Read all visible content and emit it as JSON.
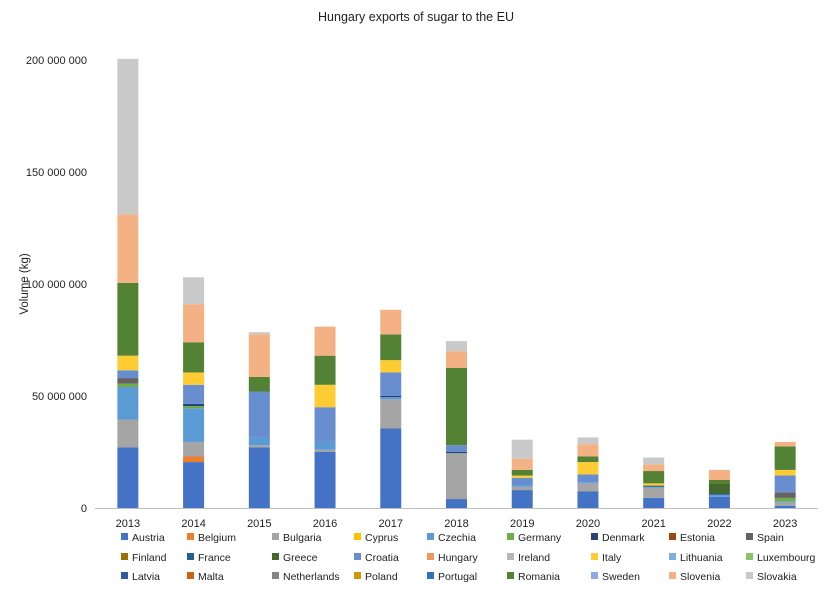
{
  "chart_data": {
    "type": "bar",
    "stacked": true,
    "title": "Hungary exports of sugar to the EU",
    "xlabel": "",
    "ylabel": "Volume (kg)",
    "ylim": [
      0,
      200000000
    ],
    "yticks": [
      0,
      50000000,
      100000000,
      150000000,
      200000000
    ],
    "ytick_labels": [
      "0",
      "50 000 000",
      "100 000 000",
      "150 000 000",
      "200 000 000"
    ],
    "categories": [
      "2013",
      "2014",
      "2015",
      "2016",
      "2017",
      "2018",
      "2019",
      "2020",
      "2021",
      "2022",
      "2023"
    ],
    "legend_position": "bottom",
    "series": [
      {
        "name": "Austria",
        "color": "#4472C4",
        "values": [
          27000000,
          20500000,
          27000000,
          25000000,
          35500000,
          4000000,
          8000000,
          7500000,
          4500000,
          5000000,
          1000000
        ]
      },
      {
        "name": "Belgium",
        "color": "#ED7D31",
        "values": [
          0,
          2500000,
          0,
          0,
          0,
          0,
          0,
          0,
          0,
          0,
          0
        ]
      },
      {
        "name": "Bulgaria",
        "color": "#A5A5A5",
        "values": [
          12500000,
          6500000,
          1000000,
          1000000,
          13000000,
          20500000,
          1500000,
          3500000,
          4500000,
          0,
          1500000
        ]
      },
      {
        "name": "Cyprus",
        "color": "#FFC000",
        "values": [
          0,
          0,
          0,
          0,
          0,
          0,
          0,
          0,
          0,
          0,
          0
        ]
      },
      {
        "name": "Czechia",
        "color": "#5B9BD5",
        "values": [
          14500000,
          15000000,
          3500000,
          3500000,
          1000000,
          0,
          1000000,
          500000,
          500000,
          1000000,
          500000
        ]
      },
      {
        "name": "Germany",
        "color": "#70AD47",
        "values": [
          1500000,
          1000000,
          0,
          0,
          0,
          0,
          0,
          0,
          0,
          0,
          1500000
        ]
      },
      {
        "name": "Denmark",
        "color": "#264478",
        "values": [
          0,
          1000000,
          0,
          0,
          500000,
          500000,
          0,
          0,
          500000,
          500000,
          0
        ]
      },
      {
        "name": "Estonia",
        "color": "#9E480E",
        "values": [
          0,
          0,
          0,
          0,
          0,
          0,
          0,
          0,
          0,
          0,
          0
        ]
      },
      {
        "name": "Spain",
        "color": "#636363",
        "values": [
          2500000,
          0,
          0,
          0,
          0,
          0,
          0,
          0,
          0,
          0,
          2500000
        ]
      },
      {
        "name": "Finland",
        "color": "#997300",
        "values": [
          0,
          0,
          0,
          0,
          0,
          0,
          0,
          0,
          0,
          0,
          0
        ]
      },
      {
        "name": "France",
        "color": "#255E91",
        "values": [
          0,
          0,
          0,
          0,
          0,
          0,
          0,
          0,
          0,
          0,
          0
        ]
      },
      {
        "name": "Greece",
        "color": "#43682B",
        "values": [
          0,
          0,
          0,
          0,
          0,
          0,
          0,
          0,
          0,
          4500000,
          0
        ]
      },
      {
        "name": "Croatia",
        "color": "#698ED0",
        "values": [
          3500000,
          8500000,
          20500000,
          15500000,
          10500000,
          3000000,
          3000000,
          3500000,
          0,
          0,
          7500000
        ]
      },
      {
        "name": "Hungary",
        "color": "#F1975A",
        "values": [
          0,
          0,
          0,
          0,
          0,
          0,
          0,
          0,
          0,
          0,
          0
        ]
      },
      {
        "name": "Ireland",
        "color": "#B7B7B7",
        "values": [
          0,
          0,
          0,
          0,
          0,
          0,
          0,
          0,
          0,
          0,
          0
        ]
      },
      {
        "name": "Italy",
        "color": "#FFCD33",
        "values": [
          6500000,
          5500000,
          0,
          10000000,
          5500000,
          0,
          1000000,
          5500000,
          1000000,
          0,
          2500000
        ]
      },
      {
        "name": "Lithuania",
        "color": "#7CAFDD",
        "values": [
          0,
          0,
          0,
          0,
          0,
          0,
          0,
          0,
          0,
          0,
          0
        ]
      },
      {
        "name": "Luxembourg",
        "color": "#8CC168",
        "values": [
          0,
          0,
          0,
          0,
          0,
          0,
          0,
          0,
          0,
          0,
          0
        ]
      },
      {
        "name": "Latvia",
        "color": "#335AA1",
        "values": [
          0,
          0,
          0,
          0,
          0,
          0,
          0,
          0,
          0,
          0,
          0
        ]
      },
      {
        "name": "Malta",
        "color": "#D26012",
        "values": [
          0,
          0,
          0,
          0,
          0,
          0,
          0,
          0,
          0,
          0,
          0
        ]
      },
      {
        "name": "Netherlands",
        "color": "#848484",
        "values": [
          0,
          0,
          0,
          0,
          0,
          0,
          0,
          0,
          0,
          0,
          0
        ]
      },
      {
        "name": "Poland",
        "color": "#CC9A00",
        "values": [
          0,
          0,
          0,
          0,
          0,
          0,
          0,
          0,
          0,
          0,
          0
        ]
      },
      {
        "name": "Portugal",
        "color": "#2E75B6",
        "values": [
          0,
          0,
          0,
          0,
          0,
          0,
          0,
          0,
          0,
          0,
          0
        ]
      },
      {
        "name": "Romania",
        "color": "#548235",
        "values": [
          32500000,
          13500000,
          6500000,
          13000000,
          11500000,
          34500000,
          2500000,
          2500000,
          5500000,
          1500000,
          10500000
        ]
      },
      {
        "name": "Sweden",
        "color": "#8FAADC",
        "values": [
          0,
          0,
          0,
          0,
          0,
          0,
          0,
          0,
          0,
          0,
          0
        ]
      },
      {
        "name": "Slovenia",
        "color": "#F4B183",
        "values": [
          30500000,
          17000000,
          19000000,
          13000000,
          11000000,
          7500000,
          5000000,
          5500000,
          3000000,
          4500000,
          2000000
        ]
      },
      {
        "name": "Slovakia",
        "color": "#C9C9C9",
        "values": [
          69500000,
          12000000,
          1000000,
          0,
          0,
          4500000,
          8500000,
          3000000,
          3000000,
          0,
          0
        ]
      }
    ]
  }
}
